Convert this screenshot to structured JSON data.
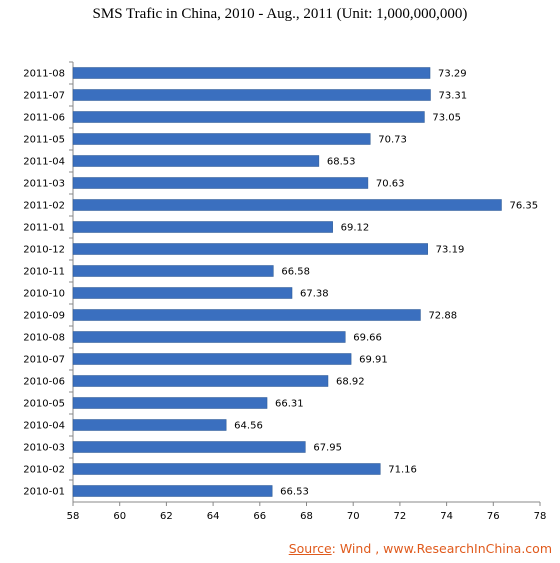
{
  "chart_data": {
    "type": "bar",
    "orientation": "horizontal",
    "title": "SMS Trafic in China, 2010 - Aug., 2011  (Unit: 1,000,000,000)",
    "categories": [
      "2011-08",
      "2011-07",
      "2011-06",
      "2011-05",
      "2011-04",
      "2011-03",
      "2011-02",
      "2011-01",
      "2010-12",
      "2010-11",
      "2010-10",
      "2010-09",
      "2010-08",
      "2010-07",
      "2010-06",
      "2010-05",
      "2010-04",
      "2010-03",
      "2010-02",
      "2010-01"
    ],
    "values": [
      73.29,
      73.31,
      73.05,
      70.73,
      68.53,
      70.63,
      76.35,
      69.12,
      73.19,
      66.58,
      67.38,
      72.88,
      69.66,
      69.91,
      68.92,
      66.31,
      64.56,
      67.95,
      71.16,
      66.53
    ],
    "xlim": [
      58,
      78
    ],
    "xticks": [
      58,
      60,
      62,
      64,
      66,
      68,
      70,
      72,
      74,
      76,
      78
    ],
    "grid": false,
    "bar_color": "#3a6fbf"
  },
  "source": {
    "label": "Source",
    "text": ": Wind , www.ResearchInChina.com",
    "color": "#e05a1c"
  }
}
